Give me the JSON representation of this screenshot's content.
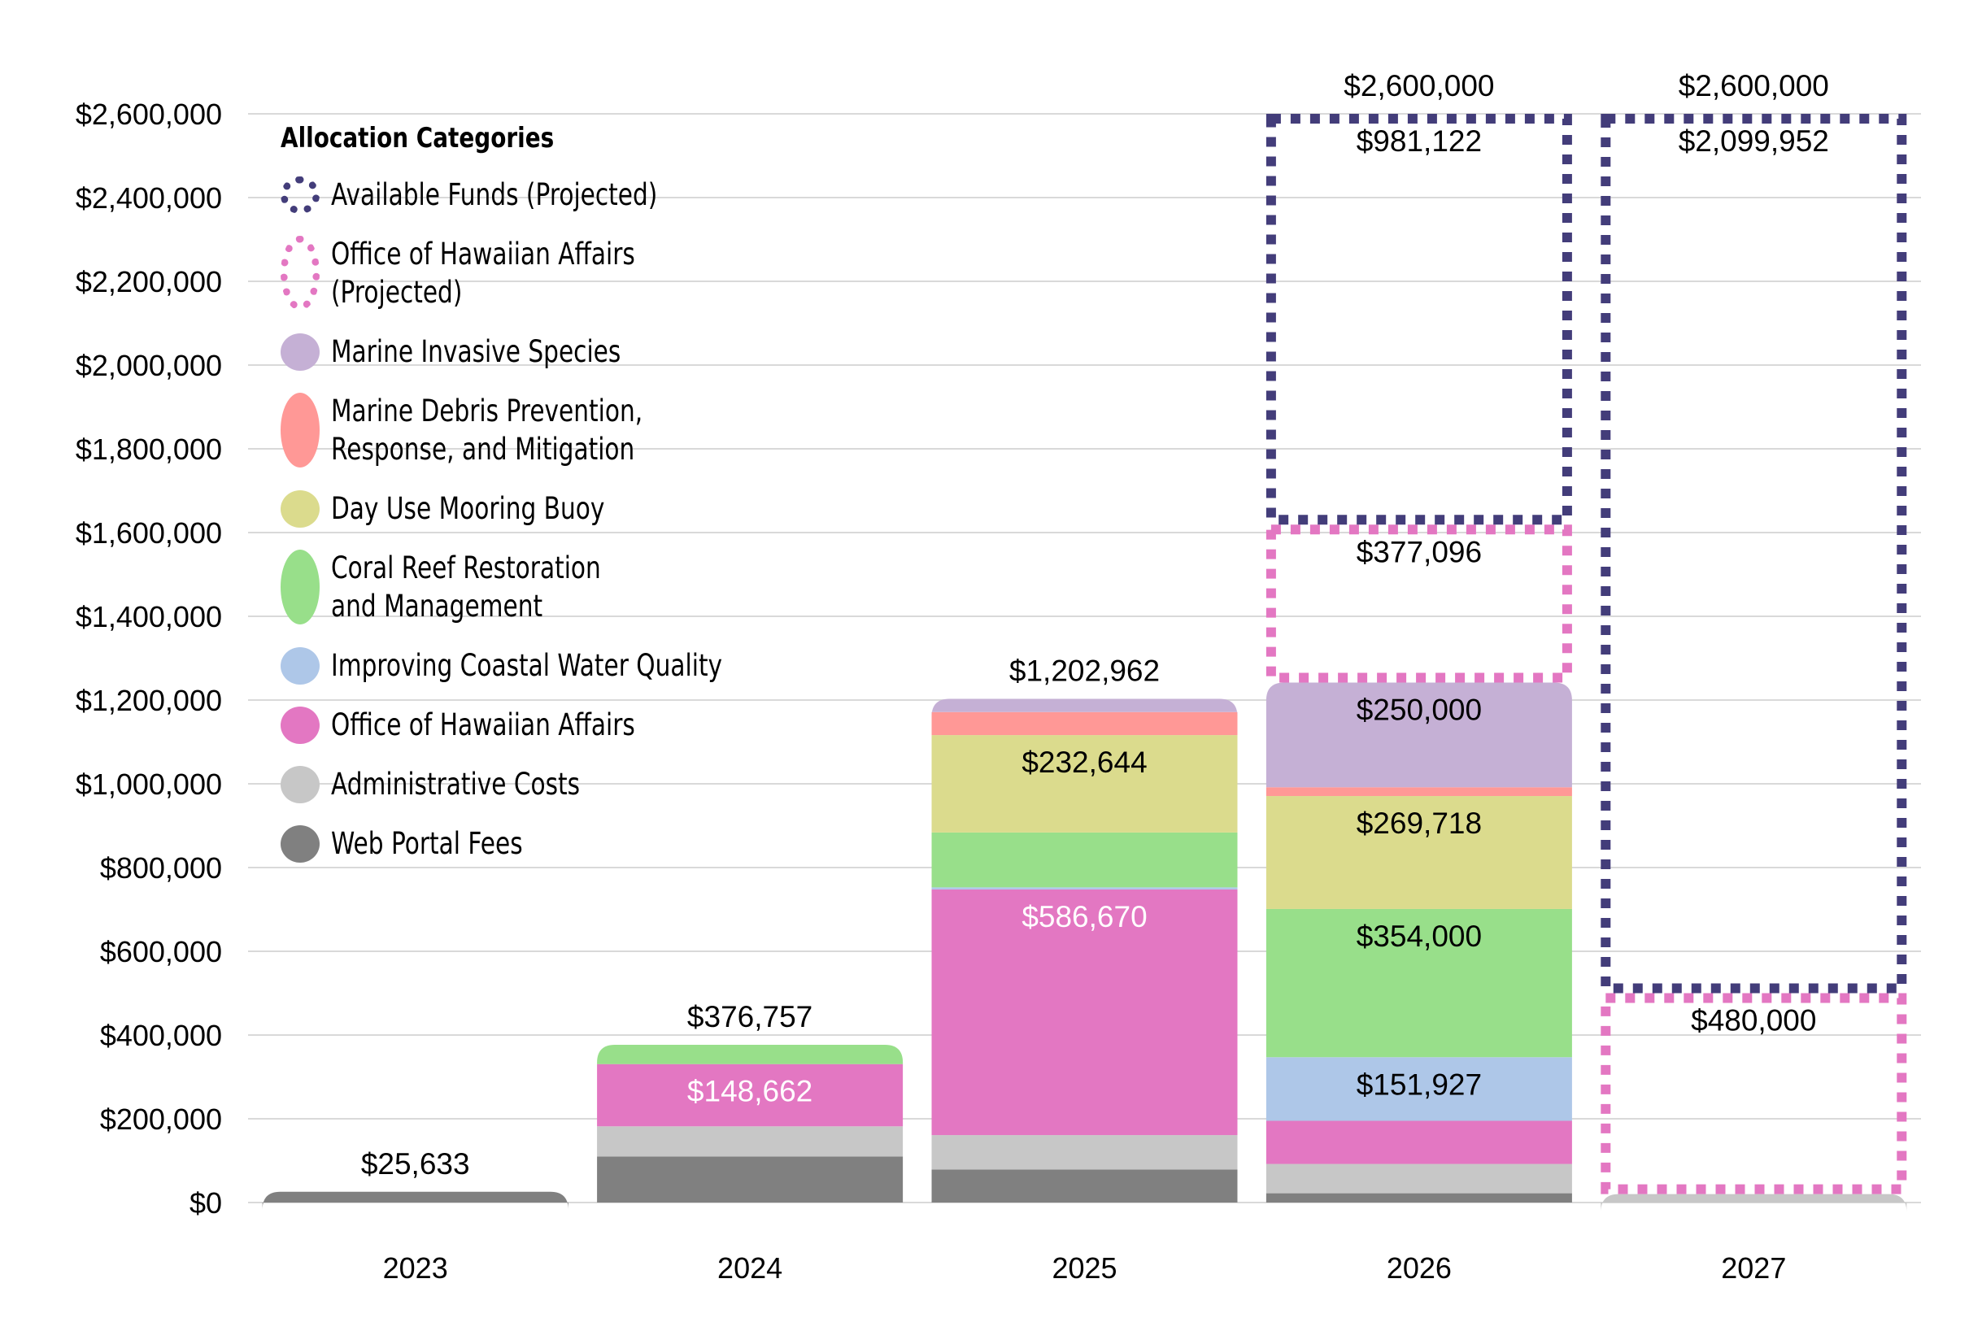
{
  "chart_data": {
    "type": "bar",
    "stacked": true,
    "title": "",
    "xlabel": "",
    "ylabel": "",
    "ylim": [
      0,
      2600000
    ],
    "yticks": [
      0,
      200000,
      400000,
      600000,
      800000,
      1000000,
      1200000,
      1400000,
      1600000,
      1800000,
      2000000,
      2200000,
      2400000,
      2600000
    ],
    "ytick_labels": [
      "$0",
      "$200,000",
      "$400,000",
      "$600,000",
      "$800,000",
      "$1,000,000",
      "$1,200,000",
      "$1,400,000",
      "$1,600,000",
      "$1,800,000",
      "$2,000,000",
      "$2,200,000",
      "$2,400,000",
      "$2,600,000"
    ],
    "grid": true,
    "legend_position": "top-left",
    "legend_title": "Allocation Categories",
    "categories": [
      "2023",
      "2024",
      "2025",
      "2026",
      "2027"
    ],
    "totals": [
      25633,
      376757,
      1202962,
      2600000,
      2600000
    ],
    "total_labels": [
      "$25,633",
      "$376,757",
      "$1,202,962",
      "$2,600,000",
      "$2,600,000"
    ],
    "series": [
      {
        "name": "Web Portal Fees",
        "color": "#808080",
        "style": "solid",
        "values": [
          25633,
          110000,
          79000,
          22137,
          0
        ],
        "labels": [
          "",
          "",
          "",
          "",
          ""
        ],
        "label_color": "#000000"
      },
      {
        "name": "Administrative Costs",
        "color": "#c7c7c7",
        "style": "solid",
        "values": [
          0,
          72000,
          82000,
          70000,
          20048
        ],
        "labels": [
          "",
          "",
          "",
          "",
          ""
        ],
        "label_color": "#000000"
      },
      {
        "name": "Office of Hawaiian Affairs",
        "color": "#e377c2",
        "style": "solid",
        "values": [
          0,
          148662,
          586670,
          103000,
          0
        ],
        "labels": [
          "",
          "$148,662",
          "$586,670",
          "",
          ""
        ],
        "label_color": "#ffffff"
      },
      {
        "name": "Improving Coastal Water Quality",
        "color": "#aec7e8",
        "style": "solid",
        "values": [
          0,
          0,
          5000,
          151927,
          0
        ],
        "labels": [
          "",
          "",
          "",
          "$151,927",
          ""
        ],
        "label_color": "#000000"
      },
      {
        "name": "Coral Reef Restoration\nand Management",
        "color": "#98df8a",
        "style": "solid",
        "values": [
          0,
          46095,
          131000,
          354000,
          0
        ],
        "labels": [
          "",
          "",
          "",
          "$354,000",
          ""
        ],
        "label_color": "#000000"
      },
      {
        "name": "Day Use Mooring Buoy",
        "color": "#dbdb8d",
        "style": "solid",
        "values": [
          0,
          0,
          232644,
          269718,
          0
        ],
        "labels": [
          "",
          "",
          "$232,644",
          "$269,718",
          ""
        ],
        "label_color": "#000000"
      },
      {
        "name": "Marine Debris Prevention,\nResponse, and Mitigation",
        "color": "#ff9896",
        "style": "solid",
        "values": [
          0,
          0,
          55000,
          21000,
          0
        ],
        "labels": [
          "",
          "",
          "",
          "",
          ""
        ],
        "label_color": "#000000"
      },
      {
        "name": "Marine Invasive Species",
        "color": "#c5b0d5",
        "style": "solid",
        "values": [
          0,
          0,
          31648,
          250000,
          0
        ],
        "labels": [
          "",
          "",
          "",
          "$250,000",
          ""
        ],
        "label_color": "#000000"
      },
      {
        "name": "Office of Hawaiian Affairs\n(Projected)",
        "color": "#e377c2",
        "style": "dotted",
        "values": [
          0,
          0,
          0,
          377096,
          480000
        ],
        "labels": [
          "",
          "",
          "",
          "$377,096",
          "$480,000"
        ],
        "label_color": "#000000"
      },
      {
        "name": "Available Funds (Projected)",
        "color": "#433d7a",
        "style": "dotted",
        "values": [
          0,
          0,
          0,
          981122,
          2099952
        ],
        "labels": [
          "",
          "",
          "",
          "$981,122",
          "$2,099,952"
        ],
        "label_color": "#000000"
      }
    ],
    "legend_order": [
      "Available Funds (Projected)",
      "Office of Hawaiian Affairs\n(Projected)",
      "Marine Invasive Species",
      "Marine Debris Prevention,\nResponse, and Mitigation",
      "Day Use Mooring Buoy",
      "Coral Reef Restoration\nand Management",
      "Improving Coastal Water Quality",
      "Office of Hawaiian Affairs",
      "Administrative Costs",
      "Web Portal Fees"
    ]
  }
}
